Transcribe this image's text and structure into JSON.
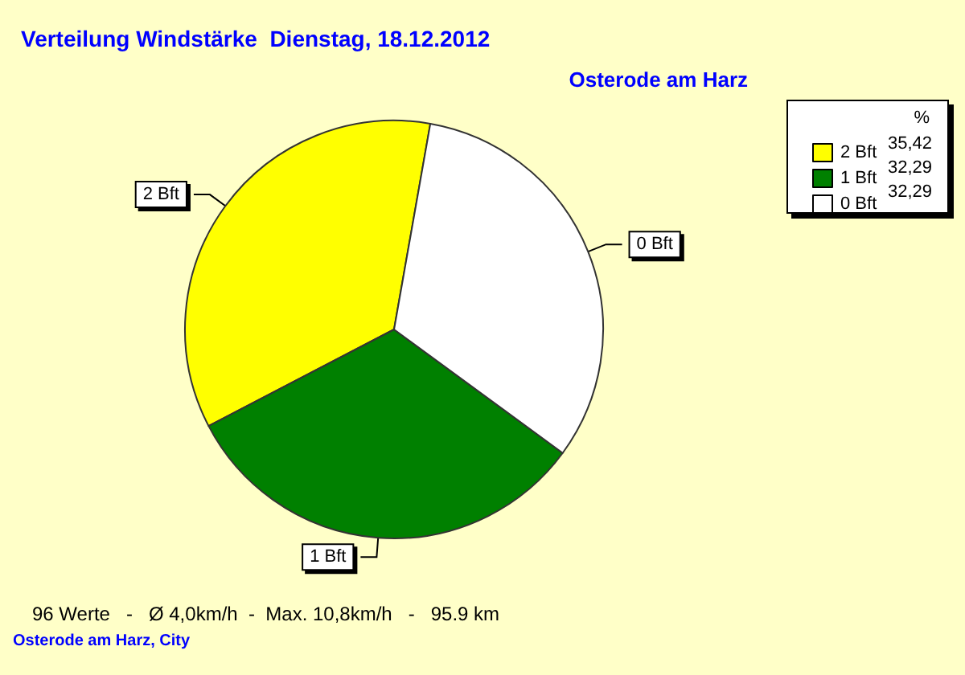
{
  "chart_data": {
    "type": "pie",
    "title": "Verteilung Windstärke  Dienstag, 18.12.2012",
    "subtitle": "Osterode am Harz",
    "legend_title": "%",
    "legend": "top right",
    "categories": [
      "2 Bft",
      "1 Bft",
      "0 Bft"
    ],
    "values": [
      35.42,
      32.29,
      32.29
    ],
    "value_labels": [
      "35,42",
      "32,29",
      "32,29"
    ],
    "colors": [
      "#ffff00",
      "#008000",
      "#ffffff"
    ],
    "annotations": [
      "96 Werte   -   Ø 4,0km/h  -  Max. 10,8km/h   -   95.9 km",
      "Osterode am Harz, City"
    ]
  }
}
